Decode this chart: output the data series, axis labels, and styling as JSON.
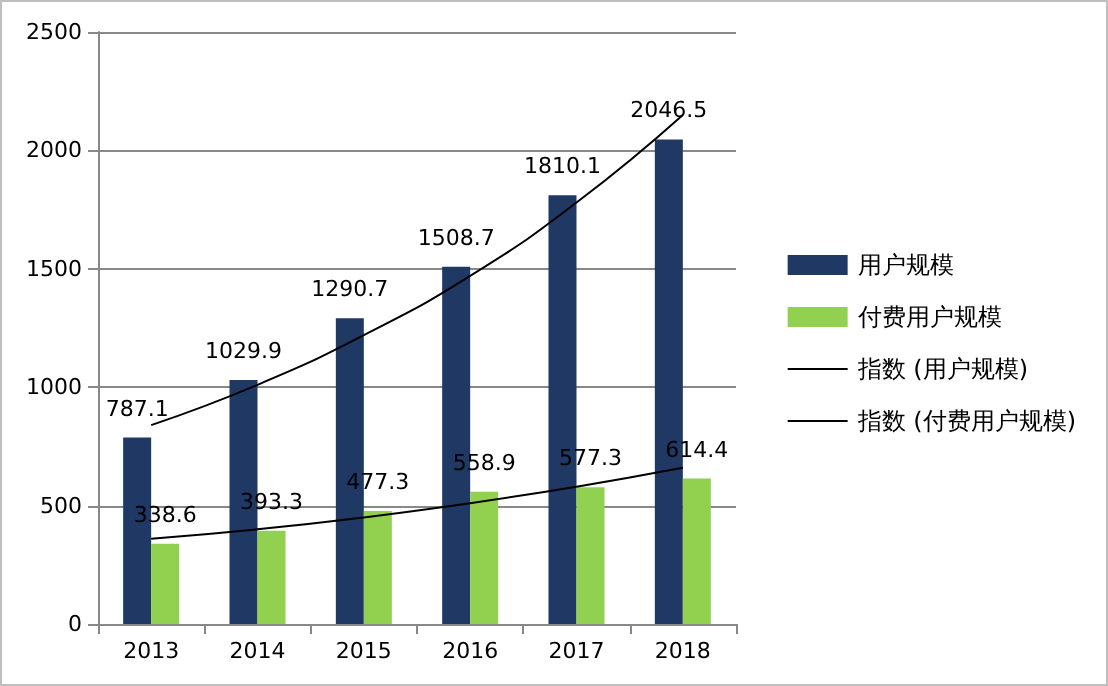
{
  "chart_data": {
    "type": "bar",
    "categories": [
      "2013",
      "2014",
      "2015",
      "2016",
      "2017",
      "2018"
    ],
    "series": [
      {
        "name": "用户规模",
        "color": "#1f3864",
        "values": [
          787.1,
          1029.9,
          1290.7,
          1508.7,
          1810.1,
          2046.5
        ],
        "value_labels": [
          "787.1",
          "1029.9",
          "1290.7",
          "1508.7",
          "1810.1",
          "2046.5"
        ]
      },
      {
        "name": "付费用户规模",
        "color": "#92d050",
        "values": [
          338.6,
          393.3,
          477.3,
          558.9,
          577.3,
          614.4
        ],
        "value_labels": [
          "338.6",
          "393.3",
          "477.3",
          "558.9",
          "577.3",
          "614.4"
        ]
      },
      {
        "name": "指数 (用户规模)",
        "type": "line",
        "color": "#000000",
        "values": [
          840,
          1010,
          1220,
          1470,
          1780,
          2150
        ]
      },
      {
        "name": "指数 (付费用户规模)",
        "type": "line",
        "color": "#000000",
        "values": [
          360,
          400,
          450,
          510,
          580,
          660
        ]
      }
    ],
    "ylim": [
      0,
      2500
    ],
    "yticks": [
      0,
      500,
      1000,
      1500,
      2000,
      2500
    ],
    "grid": "y",
    "legend": "right"
  }
}
